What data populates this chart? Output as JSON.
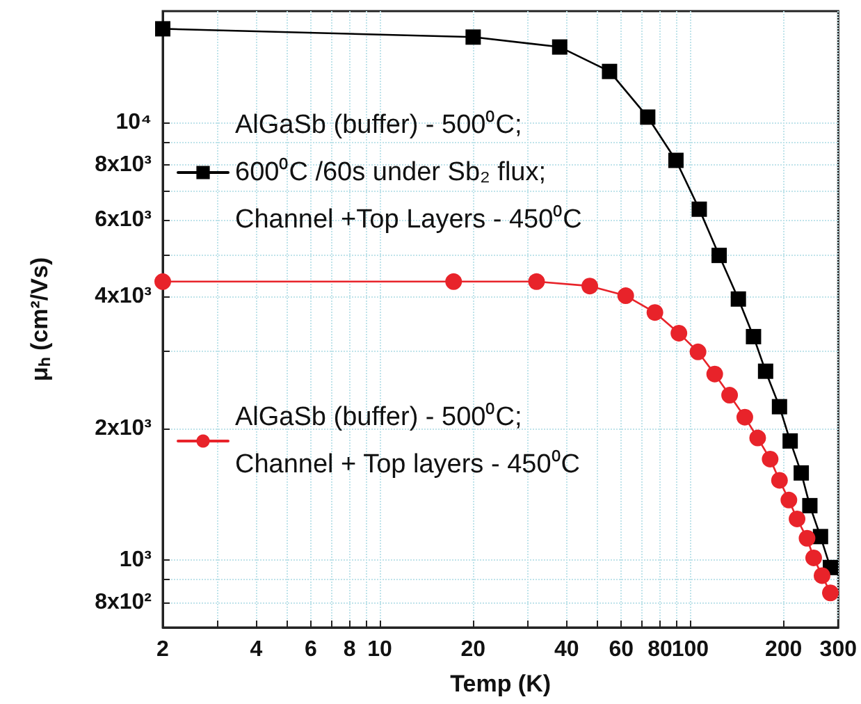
{
  "chart_data": {
    "type": "line",
    "xlabel": "Temp (K)",
    "ylabel": "μₕ (cm²/Vs)",
    "log": "xy",
    "grid": true,
    "legend": "left",
    "line_style": "solid",
    "xlim": [
      2,
      300
    ],
    "ylim": [
      700,
      18000
    ],
    "xticks": [
      2,
      {
        "value": 3,
        "label": null
      },
      4,
      {
        "value": 5,
        "label": null
      },
      6,
      {
        "value": 7,
        "label": null
      },
      8,
      {
        "value": 9,
        "label": null
      },
      10,
      20,
      {
        "value": 30,
        "label": null
      },
      40,
      {
        "value": 50,
        "label": null
      },
      60,
      {
        "value": 70,
        "label": null
      },
      80,
      {
        "value": 90,
        "label": null
      },
      100,
      200,
      300
    ],
    "yticks": [
      {
        "value": 800,
        "label": "8x10²"
      },
      {
        "value": 900,
        "label": null
      },
      {
        "value": 1000,
        "label": "10³"
      },
      {
        "value": 2000,
        "label": "2x10³"
      },
      {
        "value": 3000,
        "label": null
      },
      {
        "value": 4000,
        "label": "4x10³"
      },
      {
        "value": 5000,
        "label": null
      },
      {
        "value": 6000,
        "label": "6x10³"
      },
      {
        "value": 7000,
        "label": null
      },
      {
        "value": 8000,
        "label": "8x10³"
      },
      {
        "value": 9000,
        "label": null
      },
      {
        "value": 10000,
        "label": "10⁴"
      }
    ],
    "series": [
      {
        "name": "AlGaSb (buffer) - 500⁰C;\n600⁰C /60s under Sb₂ flux;\nChannel +Top Layers - 450⁰C",
        "color": "#000000",
        "marker": "square",
        "x": [
          2,
          20,
          38,
          55,
          73,
          90,
          107,
          124,
          143,
          160,
          175,
          194,
          210,
          228,
          243,
          263,
          283
        ],
        "values": [
          16400,
          15700,
          14900,
          13100,
          10300,
          8200,
          6340,
          4970,
          3950,
          3240,
          2700,
          2240,
          1870,
          1580,
          1330,
          1130,
          960
        ]
      },
      {
        "name": "AlGaSb (buffer) - 500⁰C;\nChannel + Top layers - 450⁰C",
        "color": "#e8232a",
        "marker": "circle",
        "x": [
          2,
          17.3,
          32,
          47.5,
          62,
          77,
          92,
          106,
          120,
          134,
          150,
          165,
          181,
          194,
          208,
          221,
          238,
          250,
          266,
          283
        ],
        "values": [
          4330,
          4330,
          4330,
          4230,
          4020,
          3680,
          3300,
          2990,
          2660,
          2380,
          2120,
          1900,
          1700,
          1520,
          1370,
          1240,
          1120,
          1010,
          920,
          840
        ]
      }
    ]
  }
}
